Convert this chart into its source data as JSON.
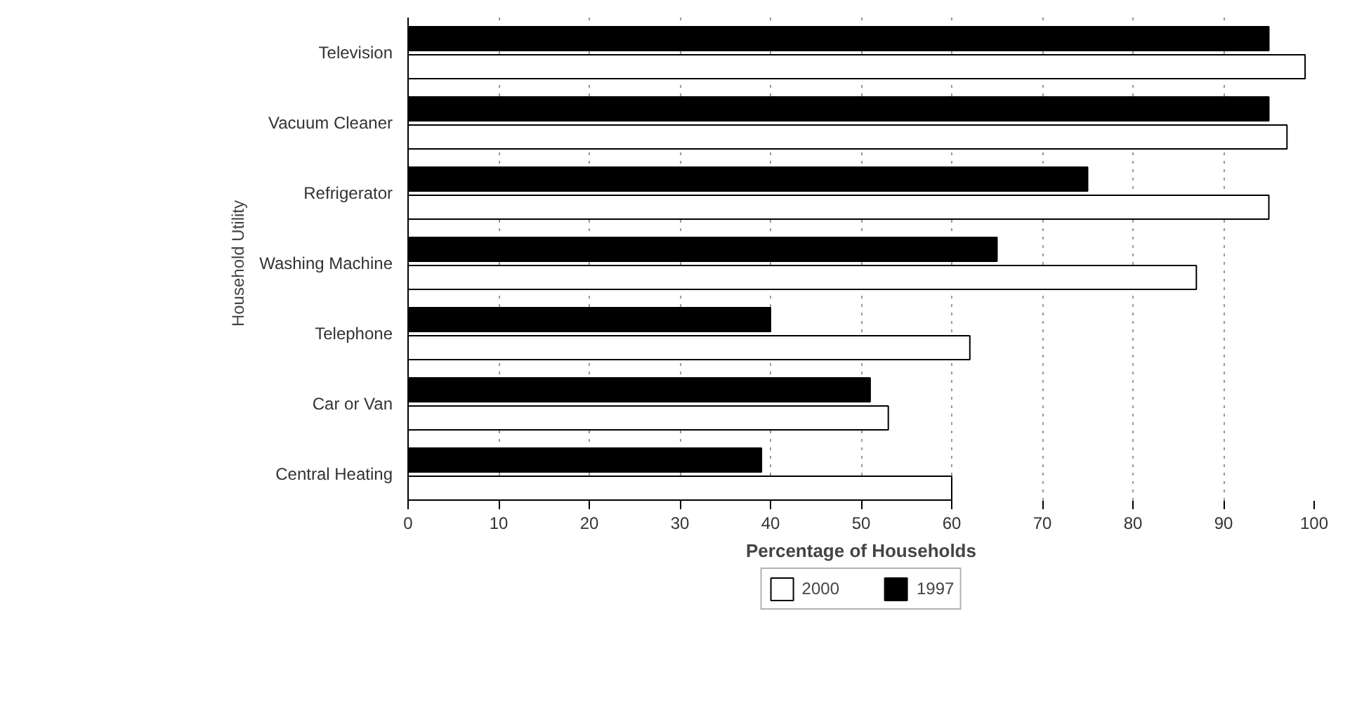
{
  "chart_data": {
    "type": "bar",
    "orientation": "horizontal",
    "xlabel": "Percentage of Households",
    "ylabel": "Household Utility",
    "categories": [
      "Television",
      "Vacuum Cleaner",
      "Refrigerator",
      "Washing Machine",
      "Telephone",
      "Car or Van",
      "Central Heating"
    ],
    "series": [
      {
        "name": "2000",
        "color": "#ffffff",
        "values": [
          99,
          97,
          95,
          87,
          62,
          53,
          60
        ]
      },
      {
        "name": "1997",
        "color": "#000000",
        "values": [
          95,
          95,
          75,
          65,
          40,
          51,
          39
        ]
      }
    ],
    "xlim": [
      0,
      100
    ],
    "xticks": [
      0,
      10,
      20,
      30,
      40,
      50,
      60,
      70,
      80,
      90,
      100
    ],
    "grid": "x",
    "legend": "bottom"
  }
}
